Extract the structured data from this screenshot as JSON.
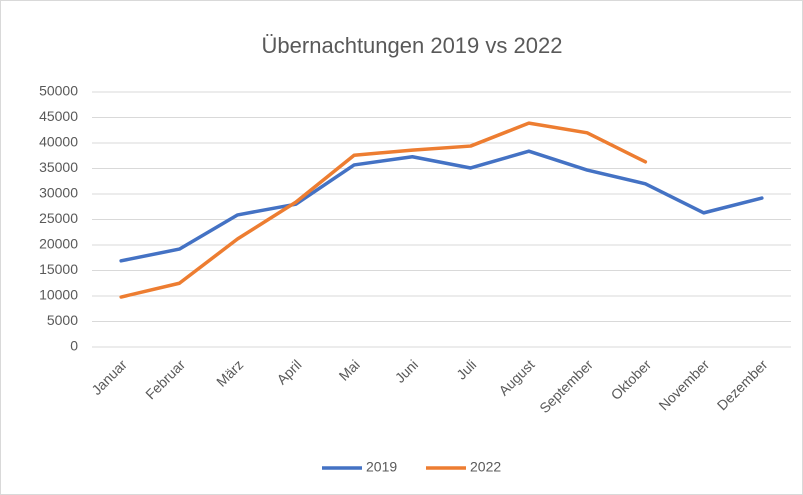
{
  "chart_data": {
    "type": "line",
    "title": "Übernachtungen 2019 vs 2022",
    "categories": [
      "Januar",
      "Februar",
      "März",
      "April",
      "Mai",
      "Juni",
      "Juli",
      "August",
      "September",
      "Oktober",
      "November",
      "Dezember"
    ],
    "series": [
      {
        "name": "2019",
        "color": "#4472c4",
        "values": [
          16900,
          19200,
          25900,
          28000,
          35700,
          37300,
          35100,
          38400,
          34700,
          32000,
          26300,
          29200
        ]
      },
      {
        "name": "2022",
        "color": "#ed7d31",
        "values": [
          9800,
          12500,
          21200,
          28400,
          37600,
          38600,
          39400,
          43900,
          42000,
          36300,
          null,
          null
        ]
      }
    ],
    "ylim": [
      0,
      50000
    ],
    "yticks": [
      0,
      5000,
      10000,
      15000,
      20000,
      25000,
      30000,
      35000,
      40000,
      45000,
      50000
    ],
    "grid": true,
    "legend": "bottom"
  }
}
